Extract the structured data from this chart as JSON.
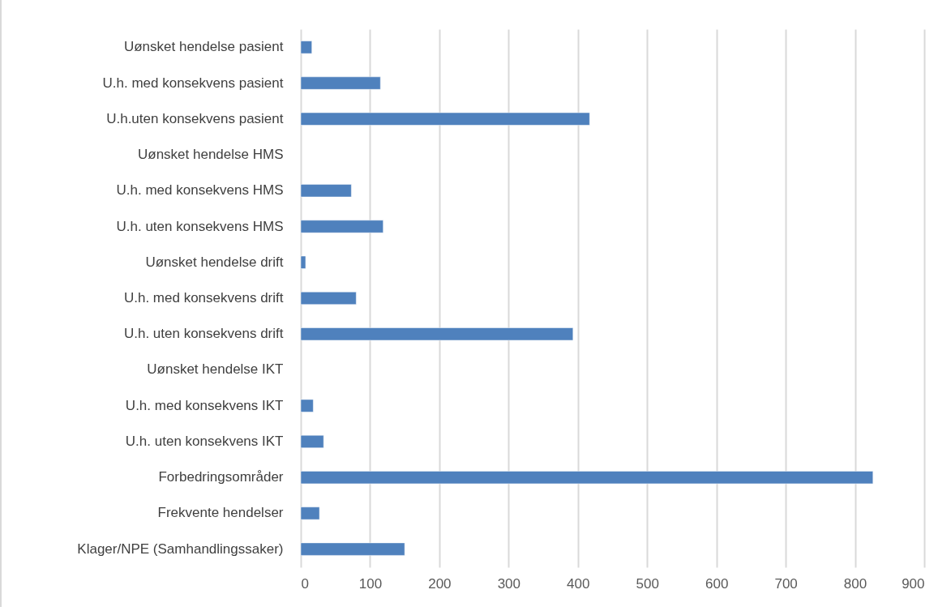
{
  "chart_data": {
    "type": "bar",
    "orientation": "horizontal",
    "categories": [
      "Uønsket hendelse pasient",
      "U.h. med konsekvens pasient",
      "U.h.uten konsekvens pasient",
      "Uønsket hendelse HMS",
      "U.h. med konsekvens HMS",
      "U.h. uten konsekvens HMS",
      "Uønsket hendelse drift",
      "U.h. med konsekvens drift",
      "U.h. uten konsekvens drift",
      "Uønsket hendelse  IKT",
      "U.h. med konsekvens IKT",
      "U.h. uten konsekvens IKT",
      "Forbedringsområder",
      "Frekvente hendelser",
      "Klager/NPE (Samhandlingssaker)"
    ],
    "values": [
      16,
      115,
      417,
      null,
      73,
      119,
      7,
      80,
      393,
      null,
      18,
      33,
      826,
      27,
      150
    ],
    "color": "#4f81bd",
    "xlim": [
      0,
      900
    ],
    "xticks": [
      0,
      100,
      200,
      300,
      400,
      500,
      600,
      700,
      800,
      900
    ],
    "grid": "x"
  }
}
